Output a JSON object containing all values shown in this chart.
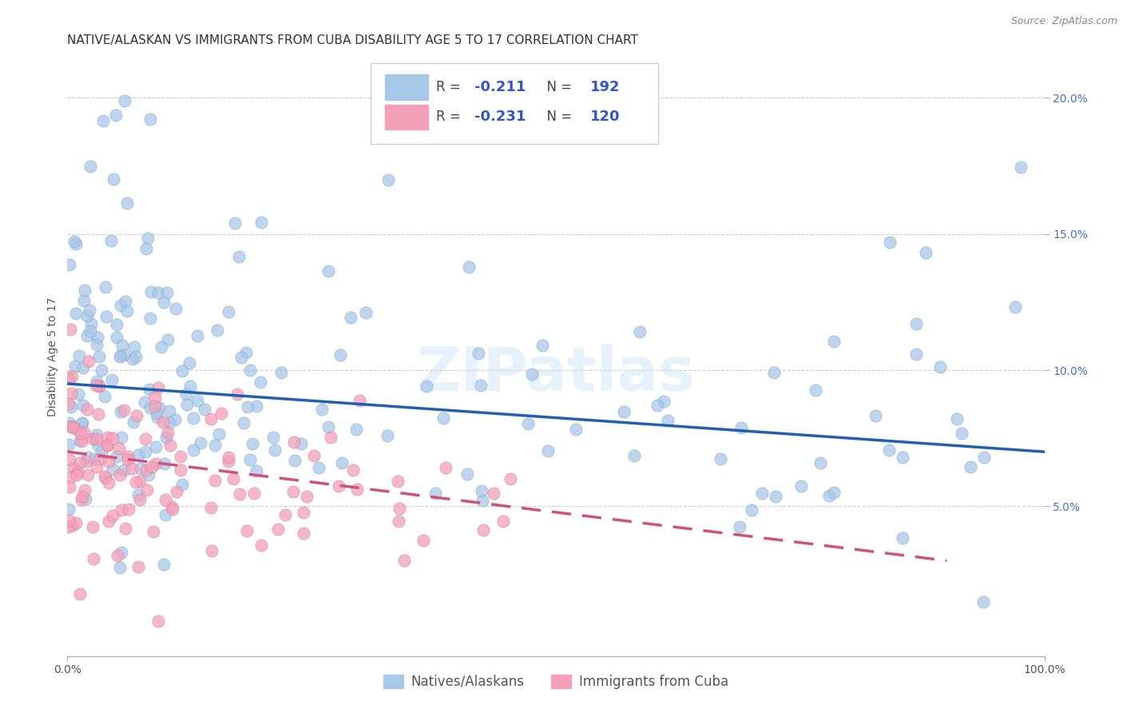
{
  "title": "NATIVE/ALASKAN VS IMMIGRANTS FROM CUBA DISABILITY AGE 5 TO 17 CORRELATION CHART",
  "source": "Source: ZipAtlas.com",
  "ylabel": "Disability Age 5 to 17",
  "ytick_labels": [
    "5.0%",
    "10.0%",
    "15.0%",
    "20.0%"
  ],
  "ytick_values": [
    0.05,
    0.1,
    0.15,
    0.2
  ],
  "legend_label1": "Natives/Alaskans",
  "legend_label2": "Immigrants from Cuba",
  "r1": "-0.211",
  "n1": "192",
  "r2": "-0.231",
  "n2": "120",
  "color_blue": "#a8c8e8",
  "color_pink": "#f4a0b8",
  "line_color_blue": "#2060b0",
  "line_color_pink": "#d05080",
  "watermark": "ZIPatlas",
  "blue_line_x0": 0.0,
  "blue_line_x1": 1.0,
  "blue_line_y0": 0.095,
  "blue_line_y1": 0.07,
  "pink_line_x0": 0.0,
  "pink_line_x1": 0.9,
  "pink_line_y0": 0.07,
  "pink_line_y1": 0.03,
  "xmin": 0.0,
  "xmax": 1.0,
  "ymin": -0.005,
  "ymax": 0.215,
  "title_fontsize": 11,
  "axis_label_fontsize": 10,
  "tick_fontsize": 10,
  "legend_fontsize": 13,
  "watermark_fontsize": 55
}
